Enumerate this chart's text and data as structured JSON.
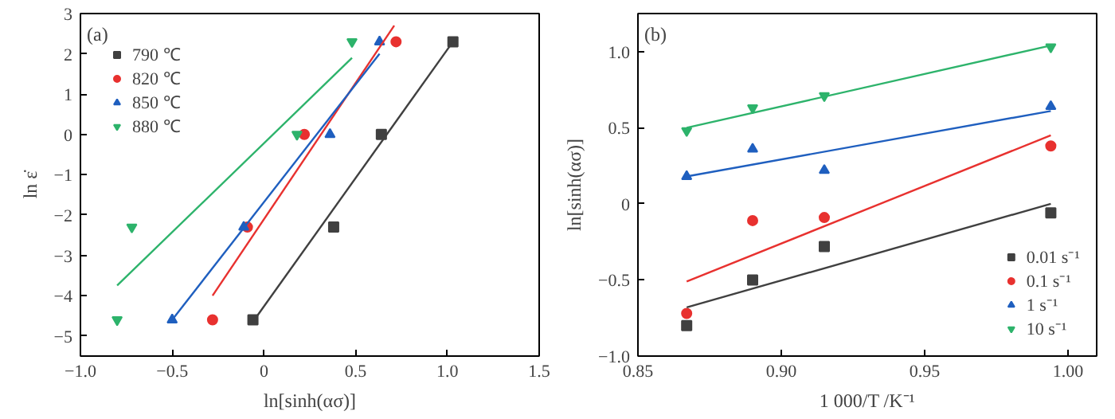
{
  "chart_data": [
    {
      "type": "scatter",
      "xlabel": "ln[sinh(ασ)]",
      "ylabel": "ln ε̇",
      "annotations": [
        "(a)"
      ],
      "legend": "top left",
      "grid": false,
      "xlim": [
        -1.0,
        1.5
      ],
      "xticks": [
        {
          "value": -1.0,
          "label": "−1.0"
        },
        {
          "value": -0.5,
          "label": "−0.5"
        },
        0,
        0.5,
        {
          "value": 1.0,
          "label": "1.0"
        },
        1.5
      ],
      "ylim": [
        -5.5,
        3
      ],
      "yticks": [
        {
          "value": -5,
          "label": "−5"
        },
        {
          "value": -4,
          "label": "−4"
        },
        {
          "value": -3,
          "label": "−3"
        },
        {
          "value": -2,
          "label": "−2"
        },
        {
          "value": -1,
          "label": "−1"
        },
        0,
        1,
        2,
        3
      ],
      "series": [
        {
          "name": "790 ℃",
          "color": "#404040",
          "marker": "square",
          "x": [
            -0.06,
            0.38,
            0.64,
            1.03
          ],
          "values": [
            -4.6,
            -2.3,
            0,
            2.3
          ]
        },
        {
          "name": "820 ℃",
          "color": "#e8312f",
          "marker": "circle",
          "x": [
            -0.28,
            -0.09,
            0.22,
            0.72
          ],
          "values": [
            -4.6,
            -2.3,
            0,
            2.3
          ]
        },
        {
          "name": "850 ℃",
          "color": "#1f5fbf",
          "marker": "triangle",
          "x": [
            -0.5,
            -0.11,
            0.36,
            0.63
          ],
          "values": [
            -4.6,
            -2.3,
            0,
            2.3
          ]
        },
        {
          "name": "880 ℃",
          "color": "#2db36b",
          "x": [
            -0.8,
            -0.72,
            0.18,
            0.48
          ],
          "values": [
            -4.6,
            -2.3,
            0,
            2.3
          ]
        },
        {
          "type": "line",
          "color": "#404040",
          "x": [
            -0.06,
            1.03
          ],
          "values": [
            -4.65,
            2.3
          ]
        },
        {
          "type": "line",
          "color": "#e8312f",
          "x": [
            -0.28,
            0.71
          ],
          "values": [
            -4.0,
            2.7
          ]
        },
        {
          "type": "line",
          "color": "#1f5fbf",
          "x": [
            -0.5,
            0.63
          ],
          "values": [
            -4.6,
            2.0
          ]
        },
        {
          "type": "line",
          "color": "#2db36b",
          "x": [
            -0.8,
            0.48
          ],
          "values": [
            -3.75,
            1.9
          ]
        }
      ]
    },
    {
      "type": "scatter",
      "xlabel": "1 000/T /K⁻¹",
      "ylabel": "ln[sinh(ασ)]",
      "annotations": [
        "(b)"
      ],
      "legend": "bottom right",
      "grid": false,
      "xlim": [
        0.85,
        1.01
      ],
      "xticks": [
        {
          "value": 0.85,
          "label": "0.85"
        },
        {
          "value": 0.9,
          "label": "0.90"
        },
        0.95,
        {
          "value": 1.0,
          "label": "1.00"
        }
      ],
      "ylim": [
        -1.0,
        1.25
      ],
      "yticks": [
        {
          "value": -1.0,
          "label": "−1.0"
        },
        {
          "value": -0.5,
          "label": "−0.5"
        },
        0,
        0.5,
        {
          "value": 1.0,
          "label": "1.0"
        }
      ],
      "series": [
        {
          "name": "0.01 s⁻¹",
          "color": "#404040",
          "marker": "square",
          "x": [
            0.867,
            0.89,
            0.915,
            0.994
          ],
          "values": [
            -0.8,
            -0.5,
            -0.28,
            -0.06
          ]
        },
        {
          "name": "0.1 s⁻¹",
          "color": "#e8312f",
          "marker": "circle",
          "x": [
            0.867,
            0.89,
            0.915,
            0.994
          ],
          "values": [
            -0.72,
            -0.11,
            -0.09,
            0.38
          ]
        },
        {
          "name": "1 s⁻¹",
          "color": "#1f5fbf",
          "marker": "triangle",
          "x": [
            0.867,
            0.89,
            0.915,
            0.994
          ],
          "values": [
            0.18,
            0.36,
            0.22,
            0.64
          ]
        },
        {
          "name": "10 s⁻¹",
          "color": "#2db36b",
          "x": [
            0.867,
            0.89,
            0.915,
            0.994
          ],
          "values": [
            0.48,
            0.63,
            0.71,
            1.03
          ]
        },
        {
          "type": "line",
          "color": "#404040",
          "x": [
            0.867,
            0.994
          ],
          "values": [
            -0.68,
            0.0
          ]
        },
        {
          "type": "line",
          "color": "#e8312f",
          "x": [
            0.867,
            0.994
          ],
          "values": [
            -0.51,
            0.45
          ]
        },
        {
          "type": "line",
          "color": "#1f5fbf",
          "x": [
            0.867,
            0.994
          ],
          "values": [
            0.18,
            0.61
          ]
        },
        {
          "type": "line",
          "color": "#2db36b",
          "x": [
            0.867,
            0.994
          ],
          "values": [
            0.5,
            1.04
          ]
        }
      ]
    }
  ]
}
